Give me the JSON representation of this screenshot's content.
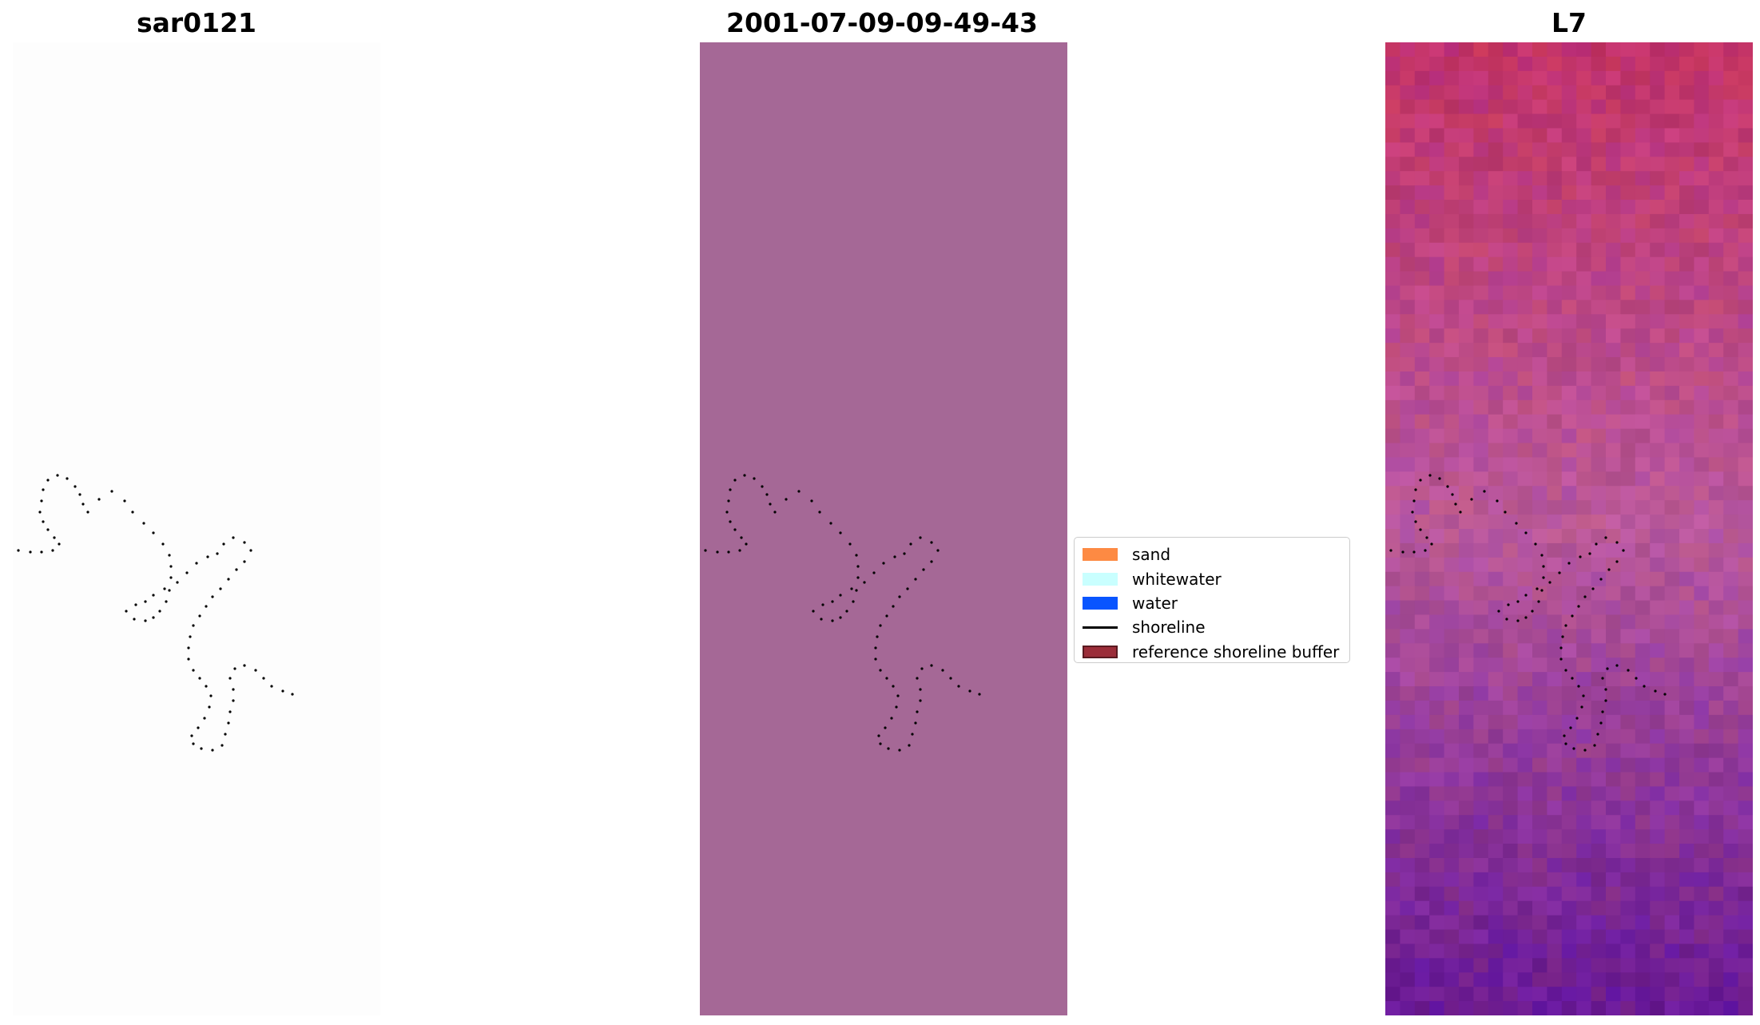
{
  "panels": [
    {
      "title": "sar0121",
      "kind": "blank",
      "background": "#fdfdfd"
    },
    {
      "title": "2001-07-09-09-49-43",
      "kind": "classified",
      "background": "#a56896"
    },
    {
      "title": "L7",
      "kind": "satellite-image"
    }
  ],
  "legend": {
    "items": [
      {
        "label": "sand",
        "color": "#fd8a43",
        "style": "patch"
      },
      {
        "label": "whitewater",
        "color": "#c9ffff",
        "style": "patch"
      },
      {
        "label": "water",
        "color": "#0955ff",
        "style": "patch"
      },
      {
        "label": "shoreline",
        "color": "#000000",
        "style": "line"
      },
      {
        "label": "reference shoreline buffer",
        "color": "#9b2d39",
        "edge": "#5a1a20",
        "style": "patch"
      }
    ]
  },
  "colors": {
    "satellite_top": "#c2336a",
    "satellite_mid": "#b8589b",
    "satellite_bottom": "#6a1a96",
    "shoreline_dot": "#000000"
  }
}
